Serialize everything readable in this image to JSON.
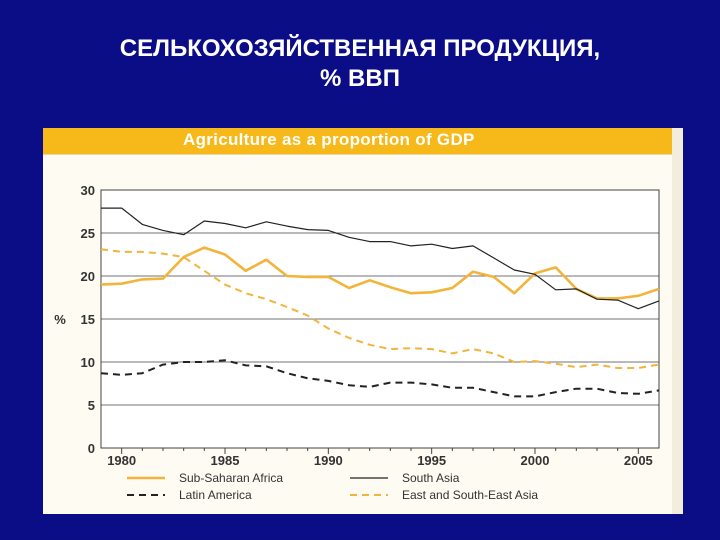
{
  "slide": {
    "title_line1": "СЕЛЬКОХОЗЯЙСТВЕННАЯ ПРОДУКЦИЯ,",
    "title_line2": "% ВВП"
  },
  "chart_data": {
    "type": "line",
    "title": "Agriculture as a proportion of GDP",
    "ylabel": "%",
    "xlabel": "",
    "xlim": [
      1979,
      2006
    ],
    "ylim": [
      0,
      30
    ],
    "xticks": [
      1980,
      1985,
      1990,
      1995,
      2000,
      2005
    ],
    "yticks": [
      0,
      5,
      10,
      15,
      20,
      25,
      30
    ],
    "grid": "horizontal",
    "legend_position": "bottom",
    "colors": {
      "orange": "#f2b43a",
      "black": "#222222"
    },
    "series": [
      {
        "name": "Sub-Saharan Africa",
        "style": "solid-thick",
        "color": "#f2b43a",
        "x": [
          1979,
          1980,
          1981,
          1982,
          1983,
          1984,
          1985,
          1986,
          1987,
          1988,
          1989,
          1990,
          1991,
          1992,
          1993,
          1994,
          1995,
          1996,
          1997,
          1998,
          1999,
          2000,
          2001,
          2002,
          2003,
          2004,
          2005,
          2006
        ],
        "y": [
          19.0,
          19.1,
          19.6,
          19.7,
          22.2,
          23.3,
          22.5,
          20.6,
          21.9,
          20.0,
          19.9,
          19.9,
          18.6,
          19.5,
          18.7,
          18.0,
          18.1,
          18.6,
          20.5,
          19.9,
          18.0,
          20.3,
          21.0,
          18.5,
          17.4,
          17.4,
          17.7,
          18.5
        ]
      },
      {
        "name": "South Asia",
        "style": "solid-thin",
        "color": "#222222",
        "x": [
          1979,
          1980,
          1981,
          1982,
          1983,
          1984,
          1985,
          1986,
          1987,
          1988,
          1989,
          1990,
          1991,
          1992,
          1993,
          1994,
          1995,
          1996,
          1997,
          1998,
          1999,
          2000,
          2001,
          2002,
          2003,
          2004,
          2005,
          2006
        ],
        "y": [
          27.9,
          27.9,
          26.0,
          25.3,
          24.8,
          26.4,
          26.1,
          25.6,
          26.3,
          25.8,
          25.4,
          25.3,
          24.5,
          24.0,
          24.0,
          23.5,
          23.7,
          23.2,
          23.5,
          22.1,
          20.7,
          20.2,
          18.4,
          18.5,
          17.3,
          17.2,
          16.2,
          17.1
        ]
      },
      {
        "name": "Latin America",
        "style": "dashed-thick",
        "color": "#222222",
        "x": [
          1979,
          1980,
          1981,
          1982,
          1983,
          1984,
          1985,
          1986,
          1987,
          1988,
          1989,
          1990,
          1991,
          1992,
          1993,
          1994,
          1995,
          1996,
          1997,
          1998,
          1999,
          2000,
          2001,
          2002,
          2003,
          2004,
          2005,
          2006
        ],
        "y": [
          8.7,
          8.5,
          8.7,
          9.7,
          10.0,
          10.0,
          10.2,
          9.6,
          9.5,
          8.7,
          8.1,
          7.8,
          7.3,
          7.1,
          7.6,
          7.6,
          7.4,
          7.0,
          7.0,
          6.5,
          6.0,
          6.0,
          6.5,
          6.9,
          6.9,
          6.4,
          6.3,
          6.7
        ]
      },
      {
        "name": "East and South-East Asia",
        "style": "dashed-thick",
        "color": "#f2b43a",
        "x": [
          1979,
          1980,
          1981,
          1982,
          1983,
          1984,
          1985,
          1986,
          1987,
          1988,
          1989,
          1990,
          1991,
          1992,
          1993,
          1994,
          1995,
          1996,
          1997,
          1998,
          1999,
          2000,
          2001,
          2002,
          2003,
          2004,
          2005,
          2006
        ],
        "y": [
          23.1,
          22.8,
          22.8,
          22.6,
          22.2,
          20.6,
          19.0,
          18.0,
          17.3,
          16.4,
          15.4,
          13.9,
          12.8,
          12.0,
          11.5,
          11.6,
          11.5,
          11.0,
          11.5,
          11.0,
          10.0,
          10.1,
          9.8,
          9.4,
          9.7,
          9.3,
          9.3,
          9.7
        ]
      }
    ],
    "legend_order": [
      "Sub-Saharan Africa",
      "South Asia",
      "Latin America",
      "East and South-East Asia"
    ]
  }
}
